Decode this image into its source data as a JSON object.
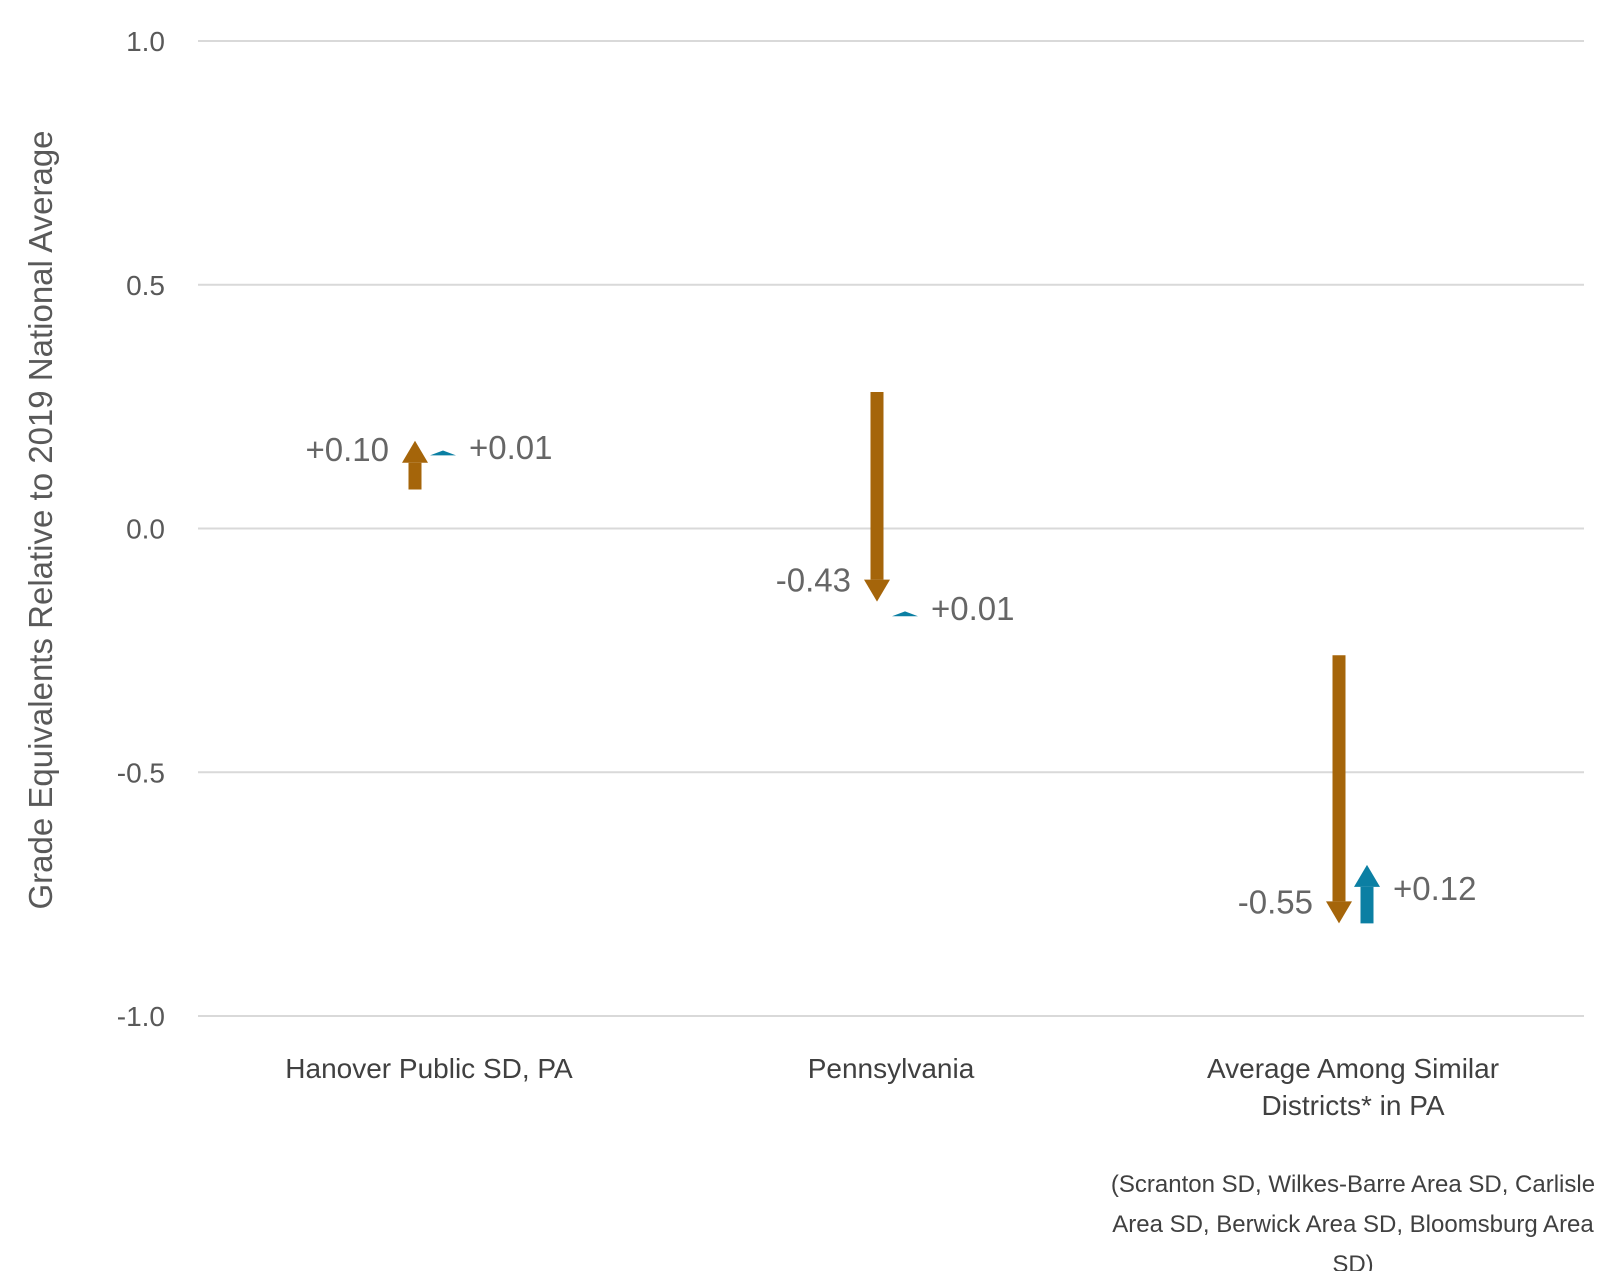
{
  "chart_data": {
    "type": "arrow",
    "ylabel": "Grade Equivalents Relative to 2019 National Average",
    "ylim": [
      -1.0,
      1.0
    ],
    "yticks": [
      "1.0",
      "0.5",
      "0.0",
      "-0.5",
      "-1.0"
    ],
    "ytick_values": [
      1.0,
      0.5,
      0.0,
      -0.5,
      -1.0
    ],
    "grid": true,
    "colors": {
      "first_change": "#a5650a",
      "second_change": "#0b7fa3"
    },
    "categories": [
      {
        "label_lines": [
          "Hanover Public SD, PA"
        ],
        "note_lines": [],
        "first_change": {
          "start": 0.08,
          "end": 0.18,
          "label": "+0.10"
        },
        "second_change": {
          "start": 0.15,
          "end": 0.16,
          "label": "+0.01"
        }
      },
      {
        "label_lines": [
          "Pennsylvania"
        ],
        "note_lines": [],
        "first_change": {
          "start": 0.28,
          "end": -0.15,
          "label": "-0.43"
        },
        "second_change": {
          "start": -0.18,
          "end": -0.17,
          "label": "+0.01"
        }
      },
      {
        "label_lines": [
          "Average Among Similar",
          "Districts* in PA"
        ],
        "note_lines": [
          "(Scranton SD, Wilkes-Barre Area SD, Carlisle",
          "Area SD, Berwick Area SD, Bloomsburg Area",
          "SD)"
        ],
        "first_change": {
          "start": -0.26,
          "end": -0.81,
          "label": "-0.55"
        },
        "second_change": {
          "start": -0.81,
          "end": -0.69,
          "label": "+0.12"
        }
      }
    ]
  }
}
